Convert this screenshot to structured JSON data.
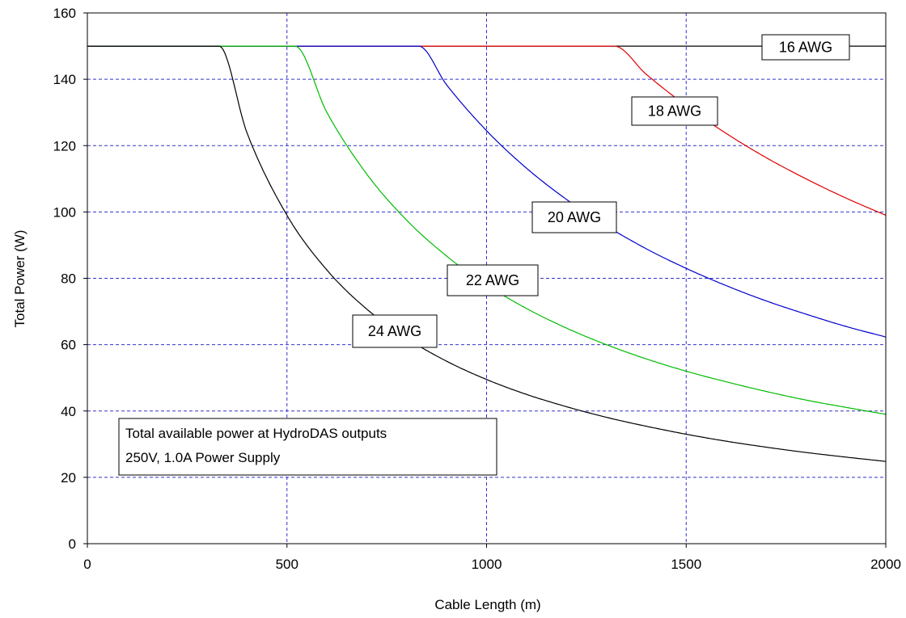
{
  "chart_data": {
    "type": "line",
    "title": "",
    "xlabel": "Cable Length (m)",
    "ylabel": "Total Power (W)",
    "xlim": [
      0,
      2000
    ],
    "ylim": [
      0,
      160
    ],
    "xticks": [
      0,
      500,
      1000,
      1500,
      2000
    ],
    "yticks": [
      0,
      20,
      40,
      60,
      80,
      100,
      120,
      140,
      160
    ],
    "grid": true,
    "grid_color": "#3333cc",
    "annotation": {
      "line1": "Total available power at HydroDAS outputs",
      "line2": "250V, 1.0A Power Supply"
    },
    "series": [
      {
        "name": "16 AWG",
        "color": "#000000",
        "x": [
          0,
          2000
        ],
        "y": [
          150,
          150
        ]
      },
      {
        "name": "18 AWG",
        "color": "#dd0000",
        "x": [
          0,
          1320,
          1400,
          1500,
          1600,
          1700,
          1800,
          1900,
          2000
        ],
        "y": [
          150,
          150,
          141.5,
          132,
          123.7,
          116.4,
          110,
          104.2,
          99
        ]
      },
      {
        "name": "20 AWG",
        "color": "#0000cc",
        "x": [
          0,
          830,
          900,
          1000,
          1100,
          1200,
          1300,
          1400,
          1500,
          1600,
          1700,
          1800,
          1900,
          2000
        ],
        "y": [
          150,
          150,
          138.3,
          124.5,
          113.2,
          103.8,
          95.8,
          88.9,
          83,
          77.8,
          73.2,
          69.2,
          65.5,
          62.3
        ]
      },
      {
        "name": "22 AWG",
        "color": "#00bb00",
        "x": [
          0,
          520,
          600,
          700,
          800,
          900,
          1000,
          1100,
          1200,
          1300,
          1400,
          1500,
          1600,
          1700,
          1800,
          1900,
          2000
        ],
        "y": [
          150,
          150,
          130,
          111.4,
          97.5,
          86.7,
          78,
          70.9,
          65,
          60,
          55.7,
          52,
          48.8,
          45.9,
          43.3,
          41.1,
          39
        ]
      },
      {
        "name": "24 AWG",
        "color": "#000000",
        "x": [
          0,
          330,
          400,
          500,
          600,
          700,
          800,
          900,
          1000,
          1100,
          1200,
          1300,
          1400,
          1500,
          1600,
          1700,
          1800,
          1900,
          2000
        ],
        "y": [
          150,
          150,
          123.8,
          99,
          82.5,
          70.7,
          61.9,
          55,
          49.5,
          45,
          41.3,
          38.1,
          35.4,
          33,
          30.9,
          29.1,
          27.5,
          26.1,
          24.8
        ]
      }
    ],
    "labels": [
      {
        "series": "16 AWG",
        "text": "16 AWG"
      },
      {
        "series": "18 AWG",
        "text": "18 AWG"
      },
      {
        "series": "20 AWG",
        "text": "20 AWG"
      },
      {
        "series": "22 AWG",
        "text": "22 AWG"
      },
      {
        "series": "24 AWG",
        "text": "24 AWG"
      }
    ]
  }
}
